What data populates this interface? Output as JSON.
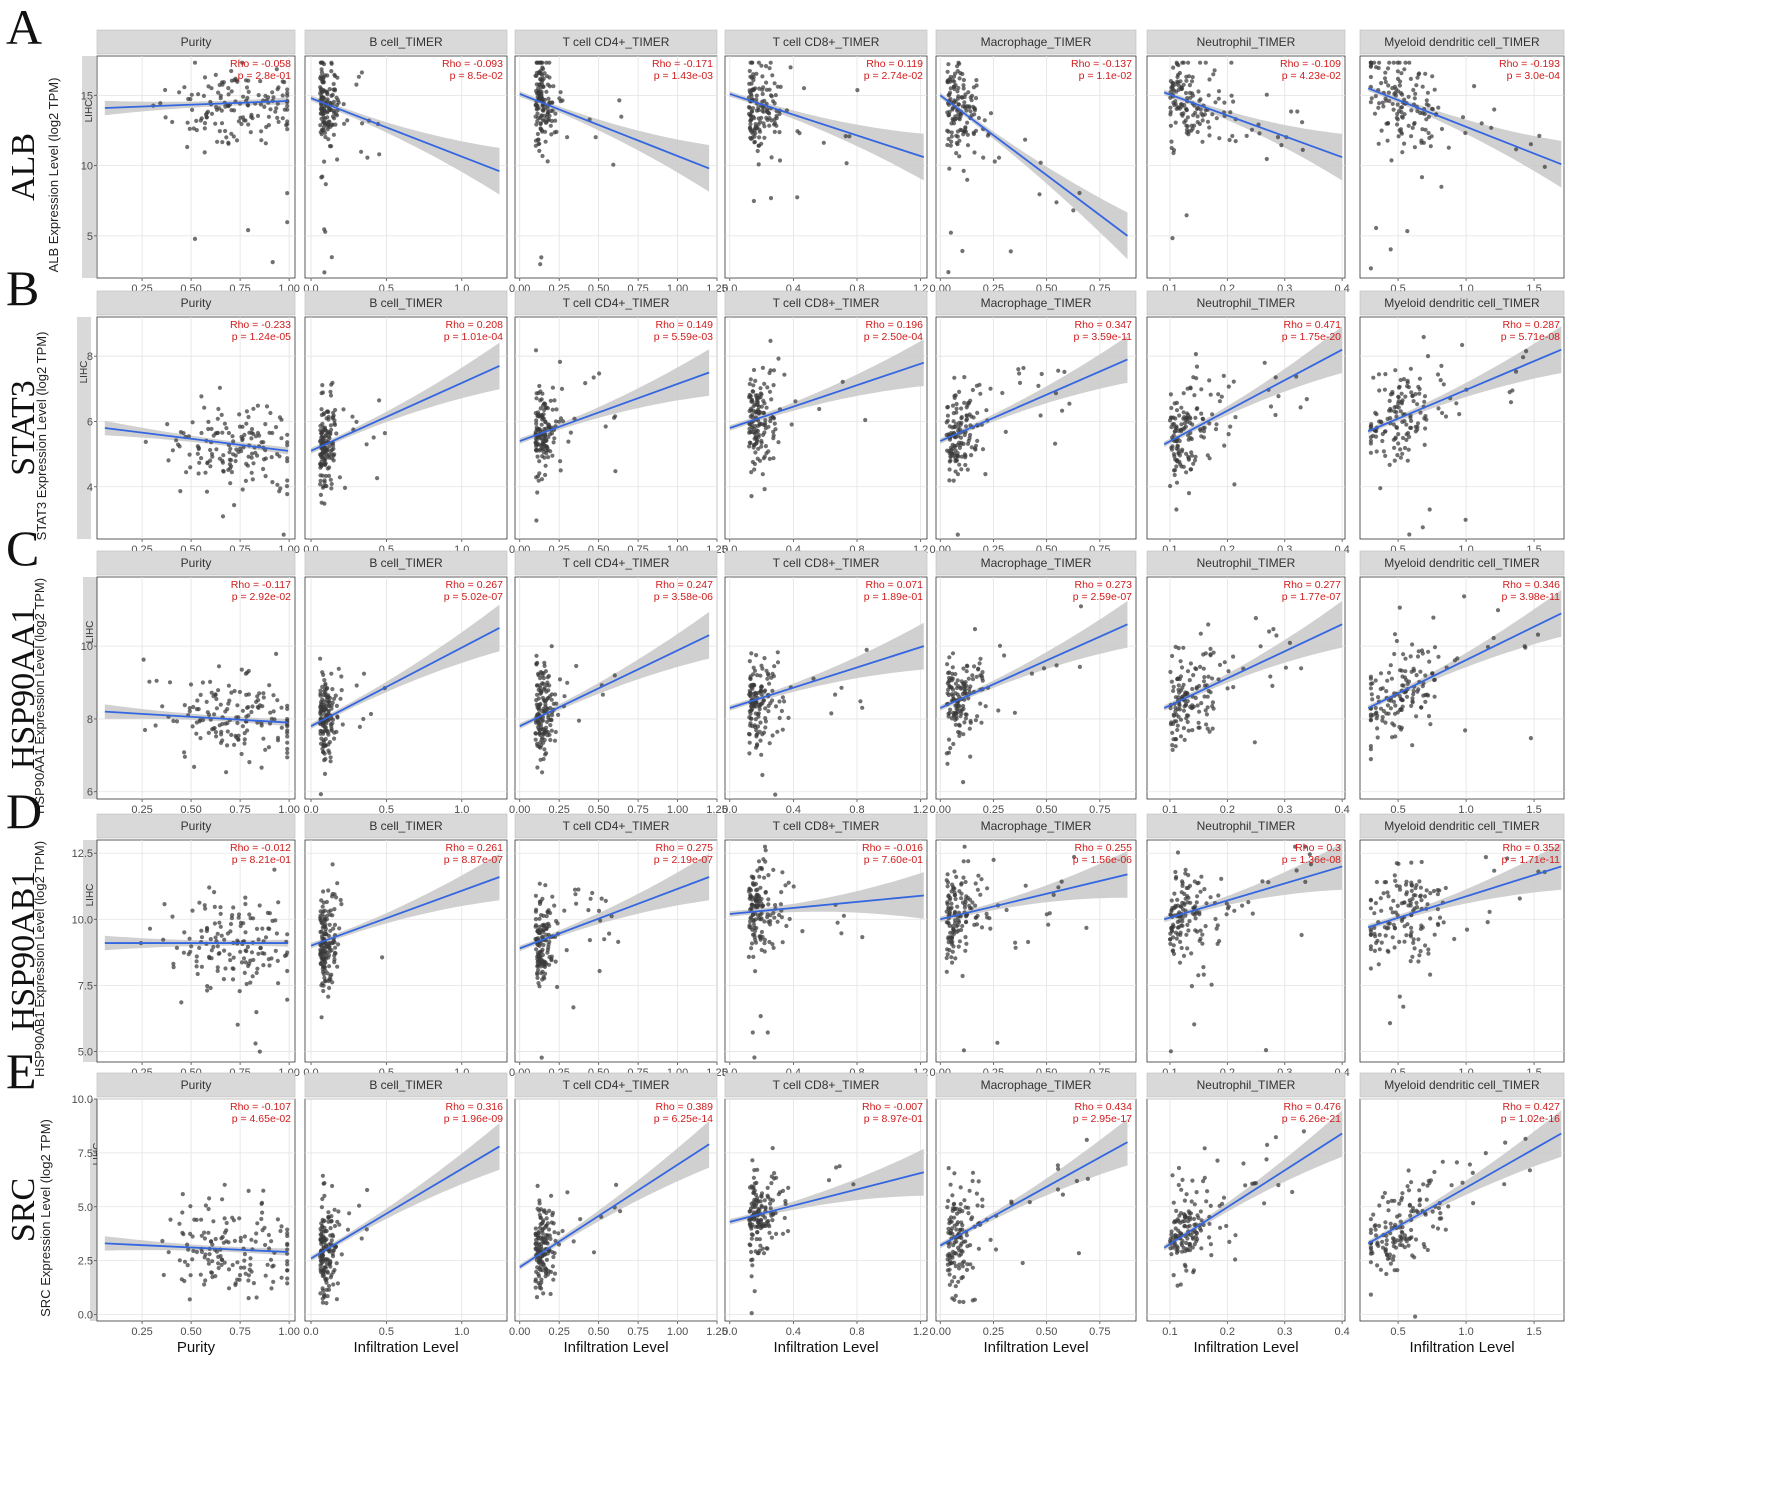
{
  "chart_data": {
    "type": "scatter",
    "cancer": "LIHC",
    "x_label_purity": "Purity",
    "x_label_infiltration": "Infiltration Level",
    "colors": {
      "points": "#3a3a3a",
      "fit_line": "#3366e0",
      "ci_band": "#c8c8c8",
      "strip": "#d9d9d9",
      "stats": "#d01c1c"
    },
    "columns": [
      {
        "strip": "Purity",
        "xlim": [
          0.02,
          1.03
        ],
        "xticks": [
          0.25,
          0.5,
          0.75,
          1.0
        ],
        "xtick_labels": [
          "0.25",
          "0.50",
          "0.75",
          "1.00"
        ],
        "xlabel": "Purity"
      },
      {
        "strip": "B cell_TIMER",
        "xlim": [
          -0.04,
          1.3
        ],
        "xticks": [
          0.0,
          0.5,
          1.0
        ],
        "xtick_labels": [
          "0.0",
          "0.5",
          "1.0"
        ],
        "xlabel": "Infiltration Level"
      },
      {
        "strip": "T cell CD4+_TIMER",
        "xlim": [
          -0.03,
          1.25
        ],
        "xticks": [
          0.0,
          0.25,
          0.5,
          0.75,
          1.0,
          1.25
        ],
        "xtick_labels": [
          "0.00",
          "0.25",
          "0.50",
          "0.75",
          "1.00",
          "1.25"
        ],
        "xlabel": "Infiltration Level"
      },
      {
        "strip": "T cell CD8+_TIMER",
        "xlim": [
          -0.03,
          1.24
        ],
        "xticks": [
          0.0,
          0.4,
          0.8,
          1.2
        ],
        "xtick_labels": [
          "0.0",
          "0.4",
          "0.8",
          "1.2"
        ],
        "xlabel": "Infiltration Level"
      },
      {
        "strip": "Macrophage_TIMER",
        "xlim": [
          -0.02,
          0.92
        ],
        "xticks": [
          0.0,
          0.25,
          0.5,
          0.75
        ],
        "xtick_labels": [
          "0.00",
          "0.25",
          "0.50",
          "0.75"
        ],
        "xlabel": "Infiltration Level"
      },
      {
        "strip": "Neutrophil_TIMER",
        "xlim": [
          0.06,
          0.405
        ],
        "xticks": [
          0.1,
          0.2,
          0.3,
          0.4
        ],
        "xtick_labels": [
          "0.1",
          "0.2",
          "0.3",
          "0.4"
        ],
        "xlabel": "Infiltration Level"
      },
      {
        "strip": "Myeloid dendritic cell_TIMER",
        "xlim": [
          0.22,
          1.72
        ],
        "xticks": [
          0.5,
          1.0,
          1.5
        ],
        "xtick_labels": [
          "0.5",
          "1.0",
          "1.5"
        ],
        "xlabel": "Infiltration Level"
      }
    ],
    "rows": [
      {
        "letter": "A",
        "gene": "ALB",
        "ylabel": "ALB Expression Level (log2 TPM)",
        "ylim": [
          2.0,
          17.8
        ],
        "yticks": [
          5,
          10,
          15
        ],
        "ytick_labels": [
          "5",
          "10",
          "15"
        ],
        "stats": [
          {
            "rho": "Rho = -0.058",
            "p": "p = 2.8e-01",
            "fit_y0": 14.1,
            "fit_y1": 14.6
          },
          {
            "rho": "Rho = -0.093",
            "p": "p = 8.5e-02",
            "fit_y0": 14.8,
            "fit_y1": 9.6
          },
          {
            "rho": "Rho = -0.171",
            "p": "p = 1.43e-03",
            "fit_y0": 15.1,
            "fit_y1": 9.8
          },
          {
            "rho": "Rho = 0.119",
            "p": "p = 2.74e-02",
            "fit_y0": 15.1,
            "fit_y1": 10.6
          },
          {
            "rho": "Rho = -0.137",
            "p": "p = 1.1e-02",
            "fit_y0": 15.0,
            "fit_y1": 5.0
          },
          {
            "rho": "Rho = -0.109",
            "p": "p = 4.23e-02",
            "fit_y0": 15.2,
            "fit_y1": 10.6
          },
          {
            "rho": "Rho = -0.193",
            "p": "p = 3.0e-04",
            "fit_y0": 15.5,
            "fit_y1": 10.1
          }
        ]
      },
      {
        "letter": "B",
        "gene": "STAT3",
        "ylabel": "STAT3 Expression Level (log2 TPM)",
        "ylim": [
          2.4,
          9.2
        ],
        "yticks": [
          4,
          6,
          8
        ],
        "ytick_labels": [
          "4",
          "6",
          "8"
        ],
        "stats": [
          {
            "rho": "Rho = -0.233",
            "p": "p = 1.24e-05",
            "fit_y0": 5.8,
            "fit_y1": 5.1
          },
          {
            "rho": "Rho = 0.208",
            "p": "p = 1.01e-04",
            "fit_y0": 5.1,
            "fit_y1": 7.7
          },
          {
            "rho": "Rho = 0.149",
            "p": "p = 5.59e-03",
            "fit_y0": 5.4,
            "fit_y1": 7.5
          },
          {
            "rho": "Rho = 0.196",
            "p": "p = 2.50e-04",
            "fit_y0": 5.8,
            "fit_y1": 7.8
          },
          {
            "rho": "Rho = 0.347",
            "p": "p = 3.59e-11",
            "fit_y0": 5.4,
            "fit_y1": 7.9
          },
          {
            "rho": "Rho = 0.471",
            "p": "p = 1.75e-20",
            "fit_y0": 5.3,
            "fit_y1": 8.2
          },
          {
            "rho": "Rho = 0.287",
            "p": "p = 5.71e-08",
            "fit_y0": 5.7,
            "fit_y1": 8.2
          }
        ]
      },
      {
        "letter": "C",
        "gene": "HSP90AA1",
        "ylabel": "HSP90AA1 Expression Level (log2 TPM)",
        "ylim": [
          5.8,
          11.9
        ],
        "yticks": [
          6,
          8,
          10
        ],
        "ytick_labels": [
          "6",
          "8",
          "10"
        ],
        "stats": [
          {
            "rho": "Rho = -0.117",
            "p": "p = 2.92e-02",
            "fit_y0": 8.2,
            "fit_y1": 7.9
          },
          {
            "rho": "Rho = 0.267",
            "p": "p = 5.02e-07",
            "fit_y0": 7.8,
            "fit_y1": 10.5
          },
          {
            "rho": "Rho = 0.247",
            "p": "p = 3.58e-06",
            "fit_y0": 7.8,
            "fit_y1": 10.3
          },
          {
            "rho": "Rho = 0.071",
            "p": "p = 1.89e-01",
            "fit_y0": 8.3,
            "fit_y1": 10.0
          },
          {
            "rho": "Rho = 0.273",
            "p": "p = 2.59e-07",
            "fit_y0": 8.3,
            "fit_y1": 10.6
          },
          {
            "rho": "Rho = 0.277",
            "p": "p = 1.77e-07",
            "fit_y0": 8.3,
            "fit_y1": 10.6
          },
          {
            "rho": "Rho = 0.346",
            "p": "p = 3.98e-11",
            "fit_y0": 8.3,
            "fit_y1": 10.9
          }
        ]
      },
      {
        "letter": "D",
        "gene": "HSP90AB1",
        "ylabel": "HSP90AB1 Expression Level (log2 TPM)",
        "ylim": [
          4.6,
          13.0
        ],
        "yticks": [
          5.0,
          7.5,
          10.0,
          12.5
        ],
        "ytick_labels": [
          "5.0",
          "7.5",
          "10.0",
          "12.5"
        ],
        "stats": [
          {
            "rho": "Rho = -0.012",
            "p": "p = 8.21e-01",
            "fit_y0": 9.1,
            "fit_y1": 9.1
          },
          {
            "rho": "Rho = 0.261",
            "p": "p = 8.87e-07",
            "fit_y0": 9.0,
            "fit_y1": 11.6
          },
          {
            "rho": "Rho = 0.275",
            "p": "p = 2.19e-07",
            "fit_y0": 8.9,
            "fit_y1": 11.6
          },
          {
            "rho": "Rho = -0.016",
            "p": "p = 7.60e-01",
            "fit_y0": 10.2,
            "fit_y1": 10.9
          },
          {
            "rho": "Rho = 0.255",
            "p": "p = 1.56e-06",
            "fit_y0": 10.0,
            "fit_y1": 11.7
          },
          {
            "rho": "Rho = 0.3",
            "p": "p = 1.36e-08",
            "fit_y0": 10.0,
            "fit_y1": 12.0
          },
          {
            "rho": "Rho = 0.352",
            "p": "p = 1.71e-11",
            "fit_y0": 9.7,
            "fit_y1": 12.0
          }
        ]
      },
      {
        "letter": "E",
        "gene": "SRC",
        "ylabel": "SRC Expression Level (log2 TPM)",
        "ylim": [
          -0.3,
          10.0
        ],
        "yticks": [
          0.0,
          2.5,
          5.0,
          7.5,
          10.0
        ],
        "ytick_labels": [
          "0.0",
          "2.5",
          "5.0",
          "7.5",
          "10.0"
        ],
        "stats": [
          {
            "rho": "Rho = -0.107",
            "p": "p = 4.65e-02",
            "fit_y0": 3.3,
            "fit_y1": 2.9
          },
          {
            "rho": "Rho = 0.316",
            "p": "p = 1.96e-09",
            "fit_y0": 2.6,
            "fit_y1": 7.8
          },
          {
            "rho": "Rho = 0.389",
            "p": "p = 6.25e-14",
            "fit_y0": 2.2,
            "fit_y1": 7.9
          },
          {
            "rho": "Rho = -0.007",
            "p": "p = 8.97e-01",
            "fit_y0": 4.3,
            "fit_y1": 6.6
          },
          {
            "rho": "Rho = 0.434",
            "p": "p = 2.95e-17",
            "fit_y0": 3.2,
            "fit_y1": 8.0
          },
          {
            "rho": "Rho = 0.476",
            "p": "p = 6.26e-21",
            "fit_y0": 3.1,
            "fit_y1": 8.4
          },
          {
            "rho": "Rho = 0.427",
            "p": "p = 1.02e-16",
            "fit_y0": 3.3,
            "fit_y1": 8.4
          }
        ]
      }
    ]
  }
}
